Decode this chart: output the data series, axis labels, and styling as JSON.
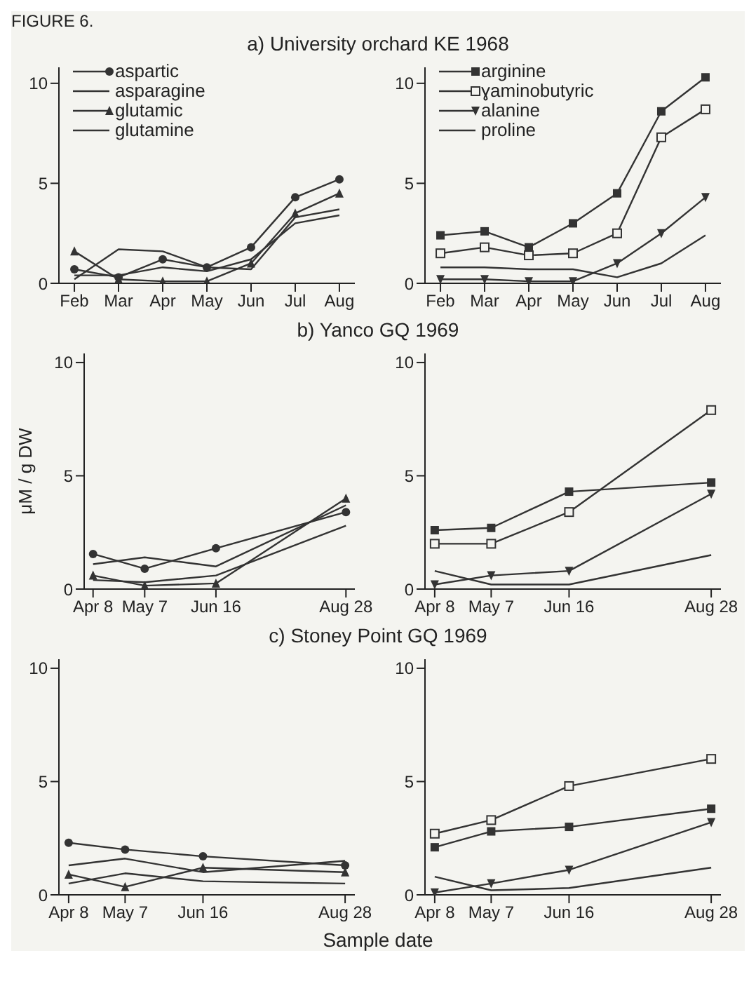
{
  "chart_data": [
    {
      "type": "line",
      "title": "a) University orchard KE 1968",
      "annotations": [
        "FIGURE 6."
      ],
      "categories": [
        "Feb",
        "Mar",
        "Apr",
        "May",
        "Jun",
        "Jul",
        "Aug"
      ],
      "ylim": [
        0,
        10.8
      ],
      "yticks": [
        0,
        5,
        10
      ],
      "legend": "top left",
      "series": [
        {
          "name": "aspartic",
          "color": "#333333",
          "marker": "circle",
          "values": [
            0.7,
            0.3,
            1.2,
            0.8,
            1.8,
            4.3,
            5.2
          ]
        },
        {
          "name": "asparagine",
          "color": "#333333",
          "marker": "none",
          "values": [
            0.2,
            1.7,
            1.6,
            0.8,
            0.7,
            3.3,
            3.7
          ]
        },
        {
          "name": "glutamic",
          "color": "#333333",
          "marker": "triangle",
          "values": [
            1.6,
            0.2,
            0.1,
            0.1,
            1.0,
            3.5,
            4.5
          ]
        },
        {
          "name": "glutamine",
          "color": "#333333",
          "marker": "none",
          "values": [
            0.4,
            0.4,
            0.8,
            0.6,
            1.2,
            3.0,
            3.4
          ]
        }
      ]
    },
    {
      "type": "line",
      "categories": [
        "Feb",
        "Mar",
        "Apr",
        "May",
        "Jun",
        "Jul",
        "Aug"
      ],
      "ylim": [
        0,
        10.8
      ],
      "yticks": [
        0,
        5,
        10
      ],
      "legend": "top left",
      "series": [
        {
          "name": "arginine",
          "color": "#333333",
          "marker": "square",
          "values": [
            2.4,
            2.6,
            1.8,
            3.0,
            4.5,
            8.6,
            10.3
          ]
        },
        {
          "name": "ɣaminobutyric",
          "color": "#333333",
          "marker": "square-open",
          "values": [
            1.5,
            1.8,
            1.4,
            1.5,
            2.5,
            7.3,
            8.7
          ]
        },
        {
          "name": "alanine",
          "color": "#333333",
          "marker": "triangle-down",
          "values": [
            0.2,
            0.2,
            0.1,
            0.1,
            1.0,
            2.5,
            4.3
          ]
        },
        {
          "name": "proline",
          "color": "#333333",
          "marker": "none",
          "values": [
            0.8,
            0.8,
            0.7,
            0.7,
            0.3,
            1.0,
            2.4
          ]
        }
      ]
    },
    {
      "type": "line",
      "title": "b) Yanco GQ 1969",
      "ylabel": "μM / g DW",
      "x": [
        "--04-08",
        "--05-07",
        "--06-16",
        "--08-28"
      ],
      "xlim": [
        "--04-03",
        "--09-02"
      ],
      "xticks": [
        {
          "value": "--04-08",
          "label": "Apr 8"
        },
        {
          "value": "--05-07",
          "label": "May 7"
        },
        {
          "value": "--06-16",
          "label": "Jun 16"
        },
        {
          "value": "--08-28",
          "label": "Aug 28"
        }
      ],
      "ylim": [
        0,
        10.4
      ],
      "yticks": [
        0,
        5,
        10
      ],
      "series": [
        {
          "color": "#333333",
          "marker": "circle",
          "values": [
            1.55,
            0.9,
            1.8,
            3.4
          ]
        },
        {
          "color": "#333333",
          "marker": "none",
          "values": [
            1.1,
            1.4,
            1.0,
            3.7
          ]
        },
        {
          "color": "#333333",
          "marker": "triangle",
          "values": [
            0.6,
            0.15,
            0.25,
            4.0
          ]
        },
        {
          "color": "#333333",
          "marker": "none",
          "values": [
            0.4,
            0.3,
            0.6,
            2.8
          ]
        }
      ]
    },
    {
      "type": "line",
      "x": [
        "--04-08",
        "--05-07",
        "--06-16",
        "--08-28"
      ],
      "xlim": [
        "--04-03",
        "--09-02"
      ],
      "xticks": [
        {
          "value": "--04-08",
          "label": "Apr 8"
        },
        {
          "value": "--05-07",
          "label": "May 7"
        },
        {
          "value": "--06-16",
          "label": "Jun 16"
        },
        {
          "value": "--08-28",
          "label": "Aug 28"
        }
      ],
      "ylim": [
        0,
        10.4
      ],
      "yticks": [
        0,
        5,
        10
      ],
      "series": [
        {
          "color": "#333333",
          "marker": "square",
          "values": [
            2.6,
            2.7,
            4.3,
            4.7
          ]
        },
        {
          "color": "#333333",
          "marker": "square-open",
          "values": [
            2.0,
            2.0,
            3.4,
            7.9
          ]
        },
        {
          "color": "#333333",
          "marker": "triangle-down",
          "values": [
            0.2,
            0.6,
            0.8,
            4.2
          ]
        },
        {
          "color": "#333333",
          "marker": "none",
          "values": [
            0.8,
            0.2,
            0.2,
            1.5
          ]
        }
      ]
    },
    {
      "type": "line",
      "title": "c) Stoney Point GQ 1969",
      "xlabel": "Sample date",
      "x": [
        "--04-08",
        "--05-07",
        "--06-16",
        "--08-28"
      ],
      "xlim": [
        "--04-03",
        "--09-02"
      ],
      "xticks": [
        {
          "value": "--04-08",
          "label": "Apr 8"
        },
        {
          "value": "--05-07",
          "label": "May 7"
        },
        {
          "value": "--06-16",
          "label": "Jun 16"
        },
        {
          "value": "--08-28",
          "label": "Aug 28"
        }
      ],
      "ylim": [
        0,
        10.4
      ],
      "yticks": [
        0,
        5,
        10
      ],
      "series": [
        {
          "color": "#333333",
          "marker": "circle",
          "values": [
            2.3,
            2.0,
            1.7,
            1.3
          ]
        },
        {
          "color": "#333333",
          "marker": "none",
          "values": [
            0.5,
            0.95,
            0.6,
            0.5
          ]
        },
        {
          "color": "#333333",
          "marker": "triangle",
          "values": [
            0.9,
            0.35,
            1.2,
            1.0
          ]
        },
        {
          "color": "#333333",
          "marker": "none",
          "values": [
            1.3,
            1.6,
            1.0,
            1.5
          ]
        }
      ]
    },
    {
      "type": "line",
      "x": [
        "--04-08",
        "--05-07",
        "--06-16",
        "--08-28"
      ],
      "xlim": [
        "--04-03",
        "--09-02"
      ],
      "xticks": [
        {
          "value": "--04-08",
          "label": "Apr 8"
        },
        {
          "value": "--05-07",
          "label": "May 7"
        },
        {
          "value": "--06-16",
          "label": "Jun 16"
        },
        {
          "value": "--08-28",
          "label": "Aug 28"
        }
      ],
      "ylim": [
        0,
        10.4
      ],
      "yticks": [
        0,
        5,
        10
      ],
      "series": [
        {
          "color": "#333333",
          "marker": "square",
          "values": [
            2.1,
            2.8,
            3.0,
            3.8
          ]
        },
        {
          "color": "#333333",
          "marker": "square-open",
          "values": [
            2.7,
            3.3,
            4.8,
            6.0
          ]
        },
        {
          "color": "#333333",
          "marker": "triangle-down",
          "values": [
            0.1,
            0.5,
            1.1,
            3.2
          ]
        },
        {
          "color": "#333333",
          "marker": "none",
          "values": [
            0.8,
            0.2,
            0.3,
            1.2
          ]
        }
      ]
    }
  ]
}
